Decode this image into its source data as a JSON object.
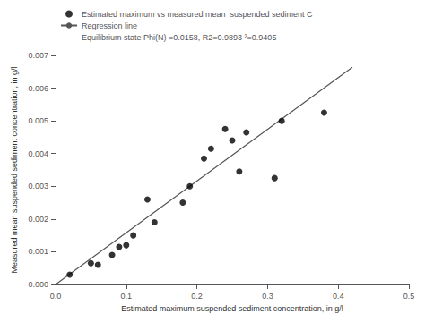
{
  "chart_data": {
    "type": "scatter",
    "xlabel": "Estimated maximum suspended sediment concentration, in g/l",
    "ylabel": "Measured mean suspended sediment concentration, in g/l",
    "series": [
      {
        "name": "Estimated maximum vs measured mean  suspended sediment C",
        "type": "scatter",
        "color": "#000000",
        "marker": "circle",
        "x": [
          0.02,
          0.05,
          0.06,
          0.08,
          0.09,
          0.1,
          0.11,
          0.13,
          0.14,
          0.18,
          0.19,
          0.21,
          0.22,
          0.24,
          0.25,
          0.26,
          0.27,
          0.31,
          0.32,
          0.38
        ],
        "values": [
          0.0003,
          0.00065,
          0.0006,
          0.0009,
          0.00115,
          0.0012,
          0.0015,
          0.0026,
          0.0019,
          0.0025,
          0.003,
          0.00385,
          0.00415,
          0.00475,
          0.0044,
          0.00345,
          0.00465,
          0.00325,
          0.005,
          0.00525
        ]
      },
      {
        "name": "Regression line",
        "type": "line",
        "color": "#555555",
        "x": [
          0.0,
          0.42
        ],
        "values": [
          0.0,
          0.006636
        ]
      },
      {
        "name": "Equilibrium state Phi(N) =0.0158, R2=0.9893 ²=0.9405",
        "x": [],
        "values": []
      }
    ],
    "xlim": [
      0.0,
      0.5
    ],
    "xticks": [
      {
        "value": 0.0,
        "label": "0.0"
      },
      0.1,
      0.2,
      0.3,
      0.4,
      0.5
    ],
    "ylim": [
      0.0,
      0.007
    ],
    "yticks": [
      {
        "value": 0.0,
        "label": "0.000"
      },
      {
        "value": 0.001,
        "label": "0.001"
      },
      {
        "value": 0.002,
        "label": "0.002"
      },
      {
        "value": 0.003,
        "label": "0.003"
      },
      {
        "value": 0.004,
        "label": "0.004"
      },
      {
        "value": 0.005,
        "label": "0.005"
      },
      {
        "value": 0.006,
        "label": "0.006"
      },
      {
        "value": 0.007,
        "label": "0.007"
      }
    ],
    "grid": false,
    "legend": "upper left"
  }
}
